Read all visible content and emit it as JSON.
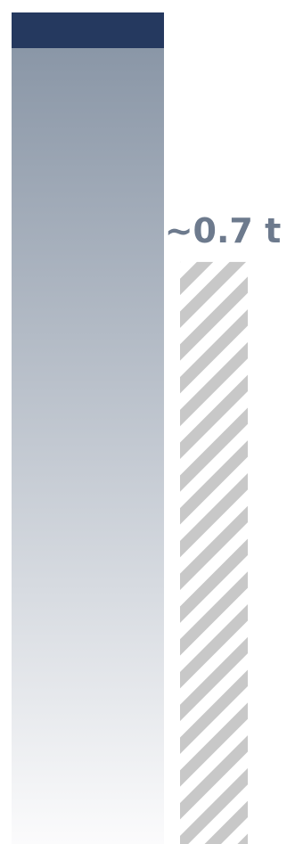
{
  "chart_data": {
    "type": "bar",
    "categories": [
      "",
      ""
    ],
    "values": [
      1.0,
      0.7
    ],
    "data_labels": [
      "",
      "~0.7 t"
    ],
    "title": "",
    "xlabel": "",
    "ylabel": "",
    "ylim": [
      0,
      1.0
    ],
    "grid": false,
    "legend": "none",
    "bar_styles": [
      "gradient",
      "hatched"
    ]
  },
  "colors": {
    "bar1_cap": "#25395f",
    "bar1_gradient_top": "#8592a3",
    "bar1_gradient_bottom": "#fbfbfc",
    "bar2_hatch": "#c8c8c8",
    "bar2_background": "#ffffff",
    "label": "#6d7a8d"
  }
}
